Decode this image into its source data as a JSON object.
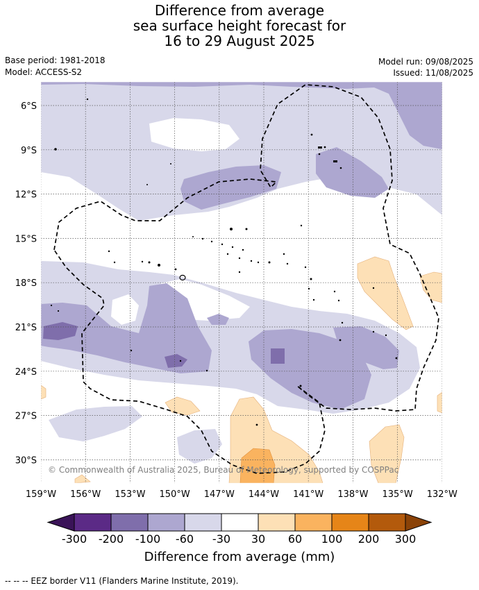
{
  "title": {
    "line1": "Difference from average",
    "line2": "sea surface height forecast for",
    "line3": "16 to 29 August 2025"
  },
  "meta": {
    "base_period": "Base period: 1981-2018",
    "model": "Model: ACCESS-S2",
    "model_run": "Model run: 09/08/2025",
    "issued": "Issued: 11/08/2025"
  },
  "map": {
    "lat_ticks": [
      "6°S",
      "9°S",
      "12°S",
      "15°S",
      "18°S",
      "21°S",
      "24°S",
      "27°S",
      "30°S"
    ],
    "lon_ticks": [
      "159°W",
      "156°W",
      "153°W",
      "150°W",
      "147°W",
      "144°W",
      "141°W",
      "138°W",
      "135°W",
      "132°W"
    ],
    "copyright": "© Commonwealth of Australia 2025, Bureau of Meteorology, supported by COSPPac",
    "grid": true
  },
  "colorbar": {
    "title": "Difference from average (mm)",
    "labels": [
      "-300",
      "-200",
      "-100",
      "-60",
      "-30",
      "30",
      "60",
      "100",
      "200",
      "300"
    ],
    "colors": {
      "under": "#3a1358",
      "b1": "#5b2a86",
      "b2": "#7f6eab",
      "b3": "#ada7d0",
      "b4": "#d8d8ea",
      "neutral": "#ffffff",
      "o1": "#fde0b6",
      "o2": "#fab35f",
      "o3": "#e68518",
      "o4": "#b35a0c",
      "over": "#8a4207"
    }
  },
  "footnote": "-- -- -- EEZ border V11 (Flanders Marine Institute, 2019)."
}
